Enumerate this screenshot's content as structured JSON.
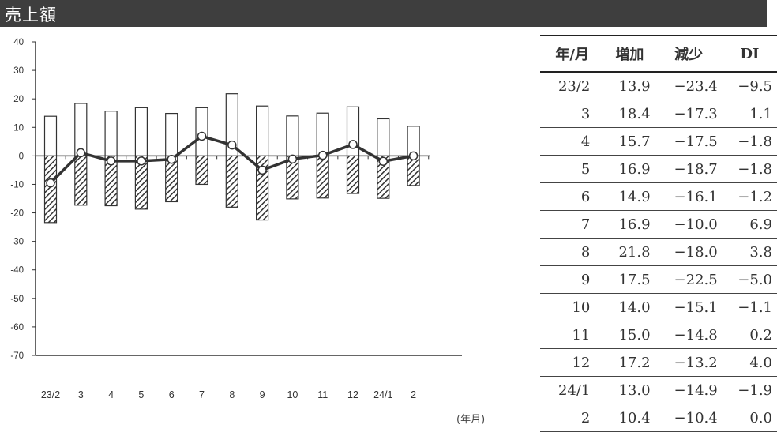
{
  "title": "売上額",
  "chart_data": {
    "type": "bar",
    "categories": [
      "23/2",
      "3",
      "4",
      "5",
      "6",
      "7",
      "8",
      "9",
      "10",
      "11",
      "12",
      "24/1",
      "2"
    ],
    "series": [
      {
        "name": "増加",
        "type": "bar",
        "values": [
          13.9,
          18.4,
          15.7,
          16.9,
          14.9,
          16.9,
          21.8,
          17.5,
          14.0,
          15.0,
          17.2,
          13.0,
          10.4
        ]
      },
      {
        "name": "減少",
        "type": "bar",
        "values": [
          -23.4,
          -17.3,
          -17.5,
          -18.7,
          -16.1,
          -10.0,
          -18.0,
          -22.5,
          -15.1,
          -14.8,
          -13.2,
          -14.9,
          -10.4
        ]
      },
      {
        "name": "DI",
        "type": "line",
        "values": [
          -9.5,
          1.1,
          -1.8,
          -1.8,
          -1.2,
          6.9,
          3.8,
          -5.0,
          -1.1,
          0.2,
          4.0,
          -1.9,
          0.0
        ]
      }
    ],
    "ylim": [
      -70,
      40
    ],
    "yticks": [
      40,
      30,
      20,
      10,
      0,
      -10,
      -20,
      -30,
      -40,
      -50,
      -60,
      -70
    ],
    "xlabel": "(年月)",
    "grid": false
  },
  "table": {
    "headers": [
      "年/月",
      "増加",
      "減少",
      "DI"
    ],
    "rows": [
      [
        "23/2",
        "13.9",
        "−23.4",
        "−9.5"
      ],
      [
        "3",
        "18.4",
        "−17.3",
        "1.1"
      ],
      [
        "4",
        "15.7",
        "−17.5",
        "−1.8"
      ],
      [
        "5",
        "16.9",
        "−18.7",
        "−1.8"
      ],
      [
        "6",
        "14.9",
        "−16.1",
        "−1.2"
      ],
      [
        "7",
        "16.9",
        "−10.0",
        "6.9"
      ],
      [
        "8",
        "21.8",
        "−18.0",
        "3.8"
      ],
      [
        "9",
        "17.5",
        "−22.5",
        "−5.0"
      ],
      [
        "10",
        "14.0",
        "−15.1",
        "−1.1"
      ],
      [
        "11",
        "15.0",
        "−14.8",
        "0.2"
      ],
      [
        "12",
        "17.2",
        "−13.2",
        "4.0"
      ],
      [
        "24/1",
        "13.0",
        "−14.9",
        "−1.9"
      ],
      [
        "2",
        "10.4",
        "−10.4",
        "0.0"
      ]
    ]
  },
  "colors": {
    "title_bg": "#3e3e3e",
    "bar_stroke": "#333333",
    "hatch": "#333333",
    "line": "#333333"
  }
}
